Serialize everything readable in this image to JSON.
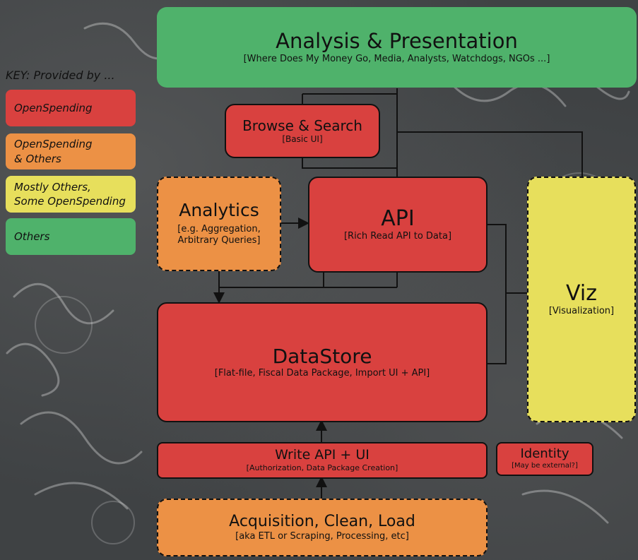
{
  "key": {
    "title": "KEY: Provided  by ...",
    "items": [
      {
        "label": "OpenSpending",
        "color": "#d9413f"
      },
      {
        "label": "OpenSpending\n& Others",
        "color": "#ec9145"
      },
      {
        "label": "Mostly Others,\nSome OpenSpending",
        "color": "#e7df5c"
      },
      {
        "label": "Others",
        "color": "#4fb26b"
      }
    ]
  },
  "nodes": {
    "analysis": {
      "title": "Analysis & Presentation",
      "sub": "[Where Does My Money Go, Media, Analysts, Watchdogs, NGOs ...]"
    },
    "browse": {
      "title": "Browse & Search",
      "sub": "[Basic UI]"
    },
    "analytics": {
      "title": "Analytics",
      "sub": "[e.g. Aggregation,\nArbitrary Queries]"
    },
    "api": {
      "title": "API",
      "sub": "[Rich Read API to Data]"
    },
    "viz": {
      "title": "Viz",
      "sub": "[Visualization]"
    },
    "datastore": {
      "title": "DataStore",
      "sub": "[Flat-file, Fiscal Data Package, Import UI + API]"
    },
    "write_api": {
      "title": "Write API + UI",
      "sub": "[Authorization, Data Package Creation]"
    },
    "identity": {
      "title": "Identity",
      "sub": "[May be external?]"
    },
    "acquisition": {
      "title": "Acquisition, Clean, Load",
      "sub": "[aka ETL or Scraping, Processing, etc]"
    }
  }
}
